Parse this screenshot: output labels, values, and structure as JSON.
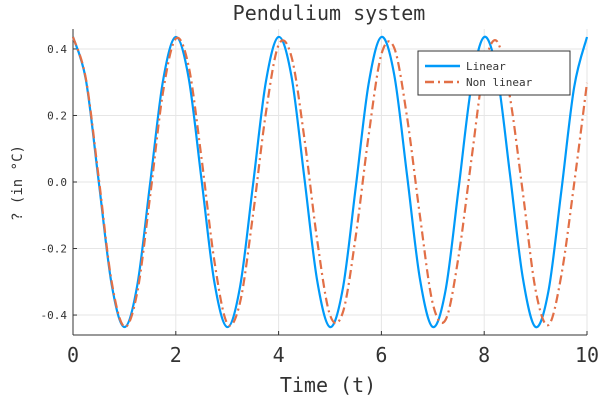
{
  "chart_data": {
    "type": "line",
    "title": "Pendulium system",
    "xlabel": "Time (t)",
    "ylabel": "? (in °C)",
    "xlim": [
      0,
      10
    ],
    "ylim": [
      -0.46,
      0.46
    ],
    "xticks": [
      {
        "value": 0,
        "label": "0"
      },
      {
        "value": 2,
        "label": "2"
      },
      {
        "value": 4,
        "label": "4"
      },
      {
        "value": 6,
        "label": "6"
      },
      {
        "value": 8,
        "label": "8"
      },
      {
        "value": 10,
        "label": "10"
      }
    ],
    "yticks": [
      {
        "value": 0.4,
        "label": "0.4"
      },
      {
        "value": 0.2,
        "label": "0.2"
      },
      {
        "value": 0.0,
        "label": "0.0"
      },
      {
        "value": -0.2,
        "label": "-0.2"
      },
      {
        "value": -0.4,
        "label": "-0.4"
      }
    ],
    "grid": true,
    "legend_position": "top-right",
    "series": [
      {
        "name": "Linear",
        "color": "#009af9",
        "style": "solid",
        "x": [
          0,
          0.25,
          0.5,
          0.75,
          1.0,
          1.25,
          1.5,
          1.75,
          2.0,
          2.25,
          2.5,
          2.75,
          3.0,
          3.25,
          3.5,
          3.75,
          4.0,
          4.25,
          4.5,
          4.75,
          5.0,
          5.25,
          5.5,
          5.75,
          6.0,
          6.25,
          6.5,
          6.75,
          7.0,
          7.25,
          7.5,
          7.75,
          8.0,
          8.25,
          8.5,
          8.75,
          9.0,
          9.25,
          9.5,
          9.75,
          10.0
        ],
        "y": [
          0.436,
          0.308,
          0.002,
          -0.306,
          -0.436,
          -0.311,
          -0.005,
          0.303,
          0.436,
          0.313,
          0.008,
          -0.301,
          -0.436,
          -0.315,
          -0.011,
          0.299,
          0.436,
          0.318,
          0.014,
          -0.296,
          -0.436,
          -0.32,
          -0.017,
          0.294,
          0.436,
          0.322,
          0.019,
          -0.292,
          -0.436,
          -0.324,
          -0.022,
          0.289,
          0.436,
          0.326,
          0.025,
          -0.287,
          -0.436,
          -0.328,
          -0.028,
          0.285,
          0.436
        ]
      },
      {
        "name": "Non linear",
        "color": "#e26f46",
        "style": "dashdot",
        "x": [
          0,
          0.25,
          0.5,
          0.75,
          1.0,
          1.25,
          1.5,
          1.75,
          2.0,
          2.25,
          2.5,
          2.75,
          3.0,
          3.25,
          3.5,
          3.75,
          4.0,
          4.25,
          4.5,
          4.75,
          5.0,
          5.25,
          5.5,
          5.75,
          6.0,
          6.25,
          6.5,
          6.75,
          7.0,
          7.25,
          7.5,
          7.75,
          8.0,
          8.25,
          8.5,
          8.75,
          9.0,
          9.25,
          9.5,
          9.75,
          10.0
        ],
        "y": [
          0.436,
          0.311,
          0.013,
          -0.298,
          -0.435,
          -0.332,
          -0.043,
          0.269,
          0.431,
          0.348,
          0.072,
          -0.237,
          -0.425,
          -0.362,
          -0.101,
          0.205,
          0.412,
          0.377,
          0.133,
          -0.174,
          -0.4,
          -0.392,
          -0.164,
          0.138,
          0.384,
          0.403,
          0.194,
          -0.102,
          -0.366,
          -0.414,
          -0.225,
          0.066,
          0.345,
          0.423,
          0.256,
          -0.03,
          -0.325,
          -0.43,
          -0.281,
          -0.005,
          0.298
        ]
      }
    ]
  }
}
